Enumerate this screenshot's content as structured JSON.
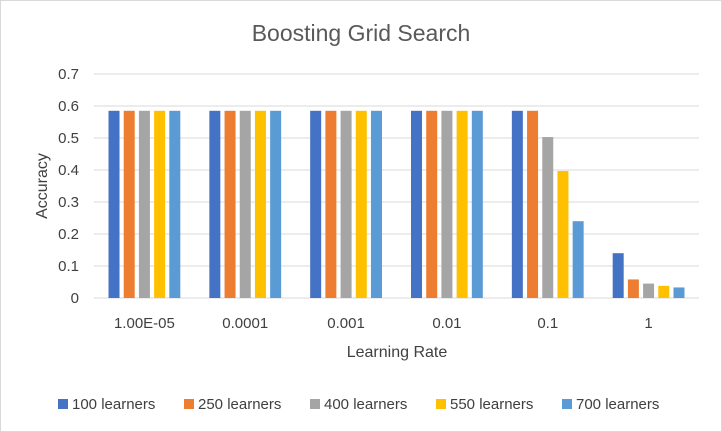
{
  "chart_data": {
    "type": "bar",
    "title": "Boosting Grid Search",
    "xlabel": "Learning Rate",
    "ylabel": "Accuracy",
    "ylim": [
      0,
      0.7
    ],
    "yticks": [
      "0",
      "0.1",
      "0.2",
      "0.3",
      "0.4",
      "0.5",
      "0.6",
      "0.7"
    ],
    "grid": true,
    "legend_position": "bottom",
    "categories": [
      "1.00E-05",
      "0.0001",
      "0.001",
      "0.01",
      "0.1",
      "1"
    ],
    "series": [
      {
        "name": "100 learners",
        "color": "#4472c4",
        "values": [
          0.585,
          0.585,
          0.585,
          0.585,
          0.585,
          0.14
        ]
      },
      {
        "name": "250 learners",
        "color": "#ed7d31",
        "values": [
          0.585,
          0.585,
          0.585,
          0.585,
          0.585,
          0.058
        ]
      },
      {
        "name": "400 learners",
        "color": "#a5a5a5",
        "values": [
          0.585,
          0.585,
          0.585,
          0.585,
          0.503,
          0.045
        ]
      },
      {
        "name": "550 learners",
        "color": "#ffc000",
        "values": [
          0.585,
          0.585,
          0.585,
          0.585,
          0.397,
          0.038
        ]
      },
      {
        "name": "700 learners",
        "color": "#5b9bd5",
        "values": [
          0.585,
          0.585,
          0.585,
          0.585,
          0.24,
          0.033
        ]
      }
    ]
  }
}
